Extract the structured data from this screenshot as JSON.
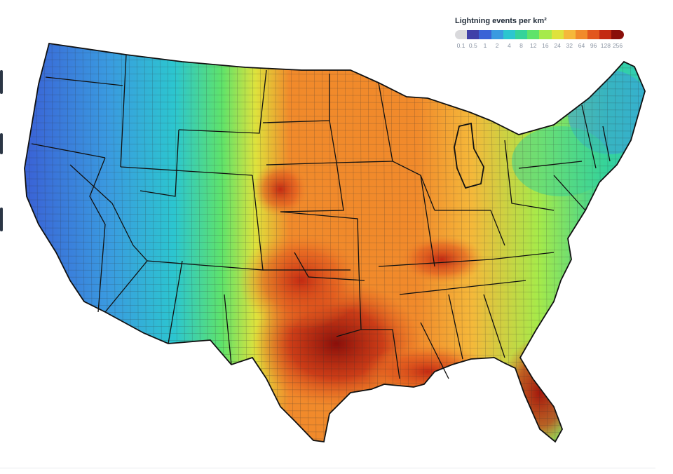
{
  "legend": {
    "title": "Lightning events per km²",
    "bins": [
      {
        "label": "0.1",
        "color": "#d9d9dc"
      },
      {
        "label": "0.5",
        "color": "#3f3fa8"
      },
      {
        "label": "1",
        "color": "#3a63d6"
      },
      {
        "label": "2",
        "color": "#3a9ae0"
      },
      {
        "label": "4",
        "color": "#2cc6cf"
      },
      {
        "label": "8",
        "color": "#35d39a"
      },
      {
        "label": "12",
        "color": "#5fe36a"
      },
      {
        "label": "16",
        "color": "#a6ea4a"
      },
      {
        "label": "24",
        "color": "#dfe23c"
      },
      {
        "label": "32",
        "color": "#f5b83a"
      },
      {
        "label": "64",
        "color": "#f18a2b"
      },
      {
        "label": "96",
        "color": "#e2561d"
      },
      {
        "label": "128",
        "color": "#c32a12"
      },
      {
        "label": "256",
        "color": "#8a0f0a"
      }
    ]
  },
  "map": {
    "region": "contiguous-united-states",
    "boundaries": [
      "state-borders",
      "county-borders"
    ],
    "land_outline_color": "#111111",
    "county_line_color": "#333333"
  }
}
